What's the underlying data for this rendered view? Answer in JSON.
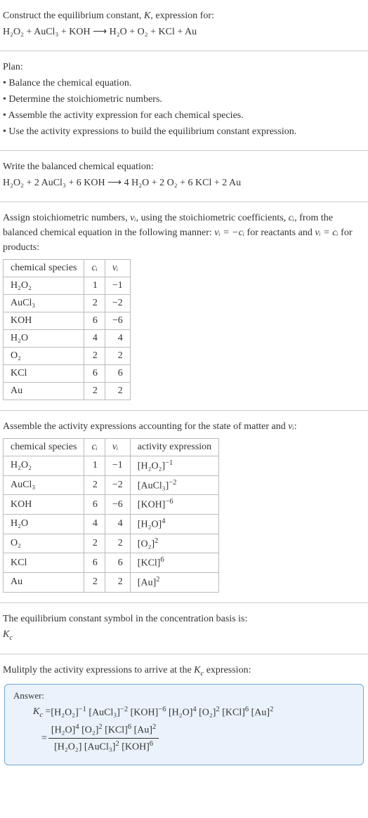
{
  "intro": {
    "line1_prefix": "Construct the equilibrium constant, ",
    "line1_italicK": "K",
    "line1_suffix": ", expression for:",
    "equation_reactants": "H₂O₂ + AuCl₃ + KOH",
    "equation_arrow": " ⟶ ",
    "equation_products": "H₂O + O₂ + KCl + Au"
  },
  "plan": {
    "heading": "Plan:",
    "bullet1": "• Balance the chemical equation.",
    "bullet2": "• Determine the stoichiometric numbers.",
    "bullet3": "• Assemble the activity expression for each chemical species.",
    "bullet4": "• Use the activity expressions to build the equilibrium constant expression."
  },
  "balanced": {
    "heading": "Write the balanced chemical equation:",
    "equation": "H₂O₂ + 2 AuCl₃ + 6 KOH ⟶ 4 H₂O + 2 O₂ + 6 KCl + 2 Au"
  },
  "assign": {
    "text_a": "Assign stoichiometric numbers, ",
    "nu_i": "νᵢ",
    "text_b": ", using the stoichiometric coefficients, ",
    "c_i": "cᵢ",
    "text_c": ", from the balanced chemical equation in the following manner: ",
    "rel1": "νᵢ = −cᵢ",
    "text_d": " for reactants and ",
    "rel2": "νᵢ = cᵢ",
    "text_e": " for products:"
  },
  "table1": {
    "h1": "chemical species",
    "h2": "cᵢ",
    "h3": "νᵢ",
    "rows": [
      {
        "sp": "H₂O₂",
        "c": "1",
        "n": "−1"
      },
      {
        "sp": "AuCl₃",
        "c": "2",
        "n": "−2"
      },
      {
        "sp": "KOH",
        "c": "6",
        "n": "−6"
      },
      {
        "sp": "H₂O",
        "c": "4",
        "n": "4"
      },
      {
        "sp": "O₂",
        "c": "2",
        "n": "2"
      },
      {
        "sp": "KCl",
        "c": "6",
        "n": "6"
      },
      {
        "sp": "Au",
        "c": "2",
        "n": "2"
      }
    ]
  },
  "assemble": {
    "text_a": "Assemble the activity expressions accounting for the state of matter and ",
    "nu_i": "νᵢ",
    "text_b": ":"
  },
  "table2": {
    "h1": "chemical species",
    "h2": "cᵢ",
    "h3": "νᵢ",
    "h4": "activity expression",
    "rows": [
      {
        "sp": "H₂O₂",
        "c": "1",
        "n": "−1",
        "base": "[H₂O₂]",
        "exp": "−1"
      },
      {
        "sp": "AuCl₃",
        "c": "2",
        "n": "−2",
        "base": "[AuCl₃]",
        "exp": "−2"
      },
      {
        "sp": "KOH",
        "c": "6",
        "n": "−6",
        "base": "[KOH]",
        "exp": "−6"
      },
      {
        "sp": "H₂O",
        "c": "4",
        "n": "4",
        "base": "[H₂O]",
        "exp": "4"
      },
      {
        "sp": "O₂",
        "c": "2",
        "n": "2",
        "base": "[O₂]",
        "exp": "2"
      },
      {
        "sp": "KCl",
        "c": "6",
        "n": "6",
        "base": "[KCl]",
        "exp": "6"
      },
      {
        "sp": "Au",
        "c": "2",
        "n": "2",
        "base": "[Au]",
        "exp": "2"
      }
    ]
  },
  "symbol": {
    "line": "The equilibrium constant symbol in the concentration basis is:",
    "kc_K": "K",
    "kc_c": "c"
  },
  "multiply": {
    "text_a": "Mulitply the activity expressions to arrive at the ",
    "kc_K": "K",
    "kc_c": "c",
    "text_b": " expression:"
  },
  "answer": {
    "label": "Answer:",
    "kc_K": "K",
    "kc_c": "c",
    "eq": " = ",
    "terms": [
      {
        "base": "[H₂O₂]",
        "exp": "−1"
      },
      {
        "base": "[AuCl₃]",
        "exp": "−2"
      },
      {
        "base": "[KOH]",
        "exp": "−6"
      },
      {
        "base": "[H₂O]",
        "exp": "4"
      },
      {
        "base": "[O₂]",
        "exp": "2"
      },
      {
        "base": "[KCl]",
        "exp": "6"
      },
      {
        "base": "[Au]",
        "exp": "2"
      }
    ],
    "eq2": "= ",
    "frac_num": [
      {
        "base": "[H₂O]",
        "exp": "4"
      },
      {
        "base": "[O₂]",
        "exp": "2"
      },
      {
        "base": "[KCl]",
        "exp": "6"
      },
      {
        "base": "[Au]",
        "exp": "2"
      }
    ],
    "frac_den": [
      {
        "base": "[H₂O₂]",
        "exp": ""
      },
      {
        "base": "[AuCl₃]",
        "exp": "2"
      },
      {
        "base": "[KOH]",
        "exp": "6"
      }
    ]
  }
}
